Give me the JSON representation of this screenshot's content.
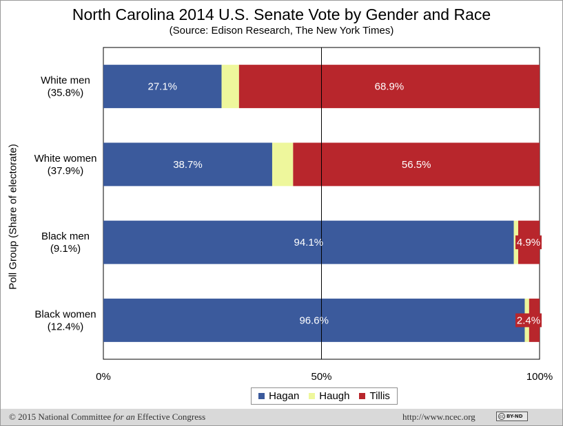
{
  "chart_data": {
    "type": "bar",
    "orientation": "horizontal",
    "stacked": true,
    "title": "North Carolina 2014 U.S. Senate Vote by Gender and Race",
    "subtitle": "(Source: Edison Research, The New York Times)",
    "ylabel": "Poll Group (Share of electorate)",
    "xlabel": "",
    "xlim": [
      0,
      100
    ],
    "grid": false,
    "legend_position": "bottom",
    "reference_line": 50,
    "x_ticks": [
      "0%",
      "50%",
      "100%"
    ],
    "categories": [
      "White men (35.8%)",
      "White women (37.9%)",
      "Black men (9.1%)",
      "Black women (12.4%)"
    ],
    "category_lines": [
      [
        "White men",
        "(35.8%)"
      ],
      [
        "White women",
        "(37.9%)"
      ],
      [
        "Black men",
        "(9.1%)"
      ],
      [
        "Black women",
        "(12.4%)"
      ]
    ],
    "series": [
      {
        "name": "Hagan",
        "color": "#3b5a9c",
        "values": [
          27.1,
          38.7,
          94.1,
          96.6
        ],
        "labels": [
          "27.1%",
          "38.7%",
          "94.1%",
          "96.6%"
        ]
      },
      {
        "name": "Haugh",
        "color": "#eef79c",
        "values": [
          4.0,
          4.8,
          1.0,
          1.0
        ],
        "labels": [
          "",
          "",
          "",
          ""
        ]
      },
      {
        "name": "Tillis",
        "color": "#b8262c",
        "values": [
          68.9,
          56.5,
          4.9,
          2.4
        ],
        "labels": [
          "68.9%",
          "56.5%",
          "4.9%",
          "2.4%"
        ]
      }
    ]
  },
  "footer": {
    "copyright": "© 2015 National Committee ",
    "copyright_italic": "for an",
    "copyright_end": " Effective Congress",
    "url": "http://www.ncec.org",
    "license_badge": "BY-ND",
    "license_cc": "cc"
  }
}
